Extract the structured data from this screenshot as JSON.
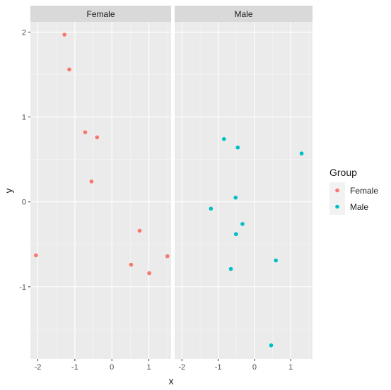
{
  "chart_data": {
    "type": "scatter",
    "facet_by": "sex",
    "panels": [
      {
        "name": "Female",
        "color": "#F8766D",
        "points": [
          {
            "x": -2.05,
            "y": -0.63
          },
          {
            "x": -1.28,
            "y": 1.97
          },
          {
            "x": -1.15,
            "y": 1.56
          },
          {
            "x": -0.72,
            "y": 0.82
          },
          {
            "x": -0.4,
            "y": 0.76
          },
          {
            "x": -0.55,
            "y": 0.24
          },
          {
            "x": 0.75,
            "y": -0.34
          },
          {
            "x": 0.52,
            "y": -0.74
          },
          {
            "x": 1.01,
            "y": -0.84
          },
          {
            "x": 1.5,
            "y": -0.64
          }
        ]
      },
      {
        "name": "Male",
        "color": "#00BFC4",
        "points": [
          {
            "x": -0.84,
            "y": 0.74
          },
          {
            "x": -0.46,
            "y": 0.64
          },
          {
            "x": 1.3,
            "y": 0.57
          },
          {
            "x": -0.52,
            "y": 0.05
          },
          {
            "x": -1.2,
            "y": -0.08
          },
          {
            "x": -0.33,
            "y": -0.26
          },
          {
            "x": -0.51,
            "y": -0.38
          },
          {
            "x": 0.59,
            "y": -0.69
          },
          {
            "x": -0.65,
            "y": -0.79
          },
          {
            "x": 0.46,
            "y": -1.69
          }
        ]
      }
    ],
    "xlim": [
      -2.2,
      1.6
    ],
    "ylim": [
      -1.85,
      2.12
    ],
    "xticks": [
      -2,
      -1,
      0,
      1
    ],
    "xtick_labels": [
      "-2",
      "-1",
      "0",
      "1"
    ],
    "yticks": [
      -1,
      0,
      1,
      2
    ],
    "ytick_labels": [
      "-1",
      "0",
      "1",
      "2"
    ],
    "xlabel": "x",
    "ylabel": "y",
    "grid": true,
    "legend": {
      "title": "Group",
      "placement": "right",
      "entries": [
        {
          "label": "Female",
          "color": "#F8766D"
        },
        {
          "label": "Male",
          "color": "#00BFC4"
        }
      ]
    },
    "colors": {
      "panel_background": "#EBEBEB",
      "strip_background": "#D9D9D9",
      "grid_major": "#FFFFFF",
      "grid_minor": "#F5F5F5"
    }
  }
}
